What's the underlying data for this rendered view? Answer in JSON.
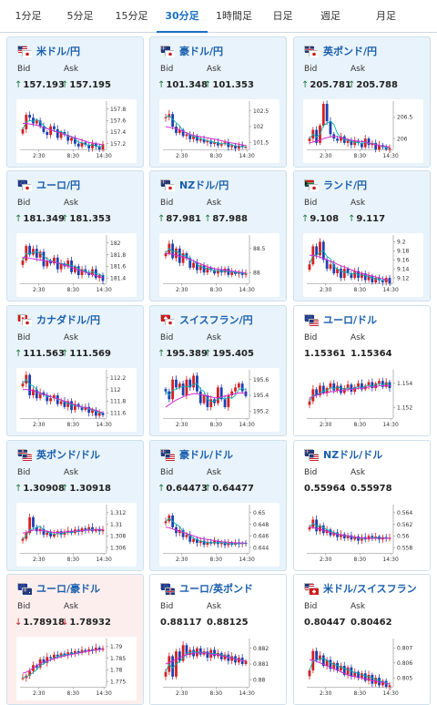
{
  "tabs": [
    {
      "label": "1分足",
      "active": false
    },
    {
      "label": "5分足",
      "active": false
    },
    {
      "label": "15分足",
      "active": false
    },
    {
      "label": "30分足",
      "active": true
    },
    {
      "label": "1時間足",
      "active": false
    },
    {
      "label": "日足",
      "active": false
    },
    {
      "label": "週足",
      "active": false
    },
    {
      "label": "月足",
      "active": false
    }
  ],
  "ui": {
    "bid_label": "Bid",
    "ask_label": "Ask"
  },
  "colors": {
    "card_bg": "#e8f3fb",
    "card_bg_down": "#fdeeee",
    "card_bg_plain": "#ffffff",
    "card_border": "#cfe0ec",
    "up_arrow": "#1a7a3a",
    "down_arrow": "#c21a1a",
    "candle_up": "#d42020",
    "candle_down": "#1c3fb3",
    "ma_short": "#00b5b5",
    "ma_long": "#d22ad2"
  },
  "time_labels": [
    "2:30",
    "8:30",
    "14:30"
  ],
  "pairs": [
    {
      "name": "米ドル/円",
      "flags": [
        "us",
        "jp"
      ],
      "trend": "up",
      "bid": "157.193",
      "ask": "157.195",
      "yticks": [
        "157.8",
        "157.6",
        "157.4",
        "157.2"
      ],
      "series": [
        157.45,
        157.7,
        157.65,
        157.55,
        157.6,
        157.5,
        157.4,
        157.35,
        157.5,
        157.45,
        157.3,
        157.4,
        157.35,
        157.25,
        157.3,
        157.2,
        157.15,
        157.22,
        157.18,
        157.12,
        157.2,
        157.15,
        157.1,
        157.19
      ],
      "ma_long": [
        157.55,
        157.55,
        157.54,
        157.53,
        157.52,
        157.5,
        157.48,
        157.46,
        157.44,
        157.42,
        157.4,
        157.38,
        157.36,
        157.34,
        157.32,
        157.3,
        157.28,
        157.26,
        157.24,
        157.22,
        157.21,
        157.2,
        157.19,
        157.18
      ]
    },
    {
      "name": "豪ドル/円",
      "flags": [
        "au",
        "jp"
      ],
      "trend": "up",
      "bid": "101.348",
      "ask": "101.353",
      "yticks": [
        "102.5",
        "102",
        "101.5"
      ],
      "series": [
        102.3,
        102.4,
        102.0,
        101.8,
        101.9,
        101.7,
        101.75,
        101.6,
        101.7,
        101.55,
        101.6,
        101.5,
        101.55,
        101.45,
        101.5,
        101.4,
        101.45,
        101.5,
        101.35,
        101.4,
        101.3,
        101.4,
        101.35,
        101.35
      ],
      "ma_long": [
        102.0,
        101.98,
        101.96,
        101.94,
        101.9,
        101.85,
        101.8,
        101.75,
        101.72,
        101.7,
        101.68,
        101.66,
        101.64,
        101.62,
        101.6,
        101.58,
        101.55,
        101.52,
        101.5,
        101.48,
        101.46,
        101.44,
        101.42,
        101.4
      ]
    },
    {
      "name": "英ポンド/円",
      "flags": [
        "gb",
        "jp"
      ],
      "trend": "up",
      "bid": "205.781",
      "ask": "205.788",
      "yticks": [
        "206.5",
        "206"
      ],
      "series": [
        206.0,
        206.2,
        205.9,
        206.3,
        206.8,
        206.4,
        206.1,
        206.0,
        205.95,
        206.05,
        205.9,
        205.95,
        205.85,
        205.95,
        205.9,
        205.8,
        206.0,
        205.85,
        205.9,
        205.75,
        205.85,
        205.8,
        205.75,
        205.78
      ],
      "ma_long": [
        205.9,
        205.92,
        205.94,
        205.96,
        206.0,
        206.02,
        206.04,
        206.05,
        206.04,
        206.02,
        206.0,
        205.98,
        205.96,
        205.95,
        205.94,
        205.93,
        205.92,
        205.9,
        205.88,
        205.86,
        205.84,
        205.83,
        205.82,
        205.8
      ]
    },
    {
      "name": "ユーロ/円",
      "flags": [
        "eu",
        "jp"
      ],
      "trend": "up",
      "bid": "181.349",
      "ask": "181.353",
      "yticks": [
        "182",
        "181.8",
        "181.6",
        "181.4"
      ],
      "series": [
        181.7,
        181.95,
        181.8,
        181.9,
        181.75,
        181.85,
        181.6,
        181.7,
        181.65,
        181.75,
        181.55,
        181.65,
        181.6,
        181.7,
        181.5,
        181.6,
        181.45,
        181.55,
        181.5,
        181.45,
        181.55,
        181.4,
        181.45,
        181.35
      ],
      "ma_long": [
        181.75,
        181.75,
        181.74,
        181.73,
        181.72,
        181.71,
        181.7,
        181.69,
        181.68,
        181.67,
        181.66,
        181.64,
        181.62,
        181.6,
        181.58,
        181.56,
        181.54,
        181.52,
        181.5,
        181.48,
        181.46,
        181.44,
        181.42,
        181.4
      ]
    },
    {
      "name": "NZドル/円",
      "flags": [
        "nz",
        "jp"
      ],
      "trend": "up",
      "bid": "87.981",
      "ask": "87.988",
      "yticks": [
        "88.5",
        "88"
      ],
      "series": [
        88.4,
        88.6,
        88.3,
        88.5,
        88.2,
        88.4,
        88.3,
        88.1,
        88.2,
        88.05,
        88.15,
        88.0,
        88.1,
        88.05,
        87.98,
        88.05,
        88.0,
        88.08,
        87.95,
        88.02,
        87.97,
        88.0,
        87.95,
        87.98
      ],
      "ma_long": [
        88.4,
        88.39,
        88.38,
        88.36,
        88.34,
        88.32,
        88.3,
        88.27,
        88.24,
        88.21,
        88.18,
        88.15,
        88.12,
        88.1,
        88.08,
        88.07,
        88.06,
        88.05,
        88.04,
        88.03,
        88.02,
        88.01,
        88.0,
        87.99
      ]
    },
    {
      "name": "ランド/円",
      "flags": [
        "za",
        "jp"
      ],
      "trend": "up",
      "bid": "9.108",
      "ask": "9.117",
      "yticks": [
        "9.2",
        "9.18",
        "9.16",
        "9.14",
        "9.12"
      ],
      "series": [
        9.15,
        9.19,
        9.17,
        9.2,
        9.16,
        9.14,
        9.15,
        9.13,
        9.14,
        9.12,
        9.14,
        9.13,
        9.12,
        9.135,
        9.12,
        9.13,
        9.115,
        9.125,
        9.11,
        9.12,
        9.115,
        9.11,
        9.12,
        9.108
      ],
      "ma_long": [
        9.17,
        9.17,
        9.168,
        9.166,
        9.163,
        9.16,
        9.157,
        9.154,
        9.15,
        9.147,
        9.144,
        9.141,
        9.138,
        9.135,
        9.132,
        9.13,
        9.128,
        9.126,
        9.124,
        9.122,
        9.12,
        9.118,
        9.116,
        9.114
      ]
    },
    {
      "name": "カナダドル/円",
      "flags": [
        "ca",
        "jp"
      ],
      "trend": "up",
      "bid": "111.563",
      "ask": "111.569",
      "yticks": [
        "112.2",
        "112",
        "111.8",
        "111.6"
      ],
      "series": [
        112.1,
        112.25,
        111.9,
        112.0,
        111.85,
        111.95,
        111.9,
        111.8,
        111.85,
        111.9,
        111.75,
        111.8,
        111.7,
        111.8,
        111.65,
        111.75,
        111.7,
        111.65,
        111.7,
        111.6,
        111.65,
        111.55,
        111.6,
        111.56
      ],
      "ma_long": [
        112.0,
        112.0,
        111.99,
        111.98,
        111.96,
        111.94,
        111.92,
        111.9,
        111.88,
        111.86,
        111.84,
        111.82,
        111.8,
        111.78,
        111.76,
        111.74,
        111.72,
        111.7,
        111.69,
        111.68,
        111.66,
        111.64,
        111.62,
        111.6
      ]
    },
    {
      "name": "スイスフラン/円",
      "flags": [
        "ch",
        "jp"
      ],
      "trend": "up",
      "bid": "195.389",
      "ask": "195.405",
      "yticks": [
        "195.6",
        "195.4",
        "195.2"
      ],
      "series": [
        195.45,
        195.35,
        195.6,
        195.5,
        195.55,
        195.4,
        195.6,
        195.5,
        195.65,
        195.45,
        195.3,
        195.4,
        195.25,
        195.35,
        195.3,
        195.5,
        195.35,
        195.25,
        195.4,
        195.45,
        195.5,
        195.55,
        195.45,
        195.39
      ],
      "ma_long": [
        195.25,
        195.28,
        195.31,
        195.34,
        195.36,
        195.38,
        195.4,
        195.41,
        195.42,
        195.42,
        195.41,
        195.4,
        195.39,
        195.38,
        195.37,
        195.37,
        195.38,
        195.39,
        195.4,
        195.41,
        195.42,
        195.43,
        195.43,
        195.42
      ]
    },
    {
      "name": "ユーロ/ドル",
      "flags": [
        "eu",
        "us"
      ],
      "trend": "none",
      "bid": "1.15361",
      "ask": "1.15364",
      "yticks": [
        "1.154",
        "1.152"
      ],
      "series": [
        1.1525,
        1.1535,
        1.153,
        1.1538,
        1.1532,
        1.1536,
        1.154,
        1.1534,
        1.1538,
        1.1532,
        1.1536,
        1.1539,
        1.1533,
        1.1537,
        1.154,
        1.1535,
        1.1538,
        1.1541,
        1.1536,
        1.154,
        1.1542,
        1.1537,
        1.1541,
        1.1536
      ],
      "ma_long": [
        1.1528,
        1.1529,
        1.153,
        1.1531,
        1.1532,
        1.1532,
        1.1533,
        1.1533,
        1.1534,
        1.1534,
        1.1534,
        1.1535,
        1.1535,
        1.1535,
        1.1536,
        1.1536,
        1.1536,
        1.1537,
        1.1537,
        1.1537,
        1.1538,
        1.1538,
        1.1538,
        1.1538
      ]
    },
    {
      "name": "英ポンド/ドル",
      "flags": [
        "gb",
        "us"
      ],
      "trend": "up",
      "bid": "1.30908",
      "ask": "1.30918",
      "yticks": [
        "1.312",
        "1.31",
        "1.308",
        "1.306"
      ],
      "series": [
        1.3075,
        1.3085,
        1.3112,
        1.3095,
        1.3088,
        1.3092,
        1.3082,
        1.3086,
        1.3079,
        1.3084,
        1.3088,
        1.3082,
        1.3086,
        1.3089,
        1.3085,
        1.3091,
        1.3087,
        1.3093,
        1.3089,
        1.3095,
        1.3088,
        1.3092,
        1.3088,
        1.3091
      ],
      "ma_long": [
        1.3085,
        1.3086,
        1.3088,
        1.309,
        1.309,
        1.309,
        1.3089,
        1.3088,
        1.3087,
        1.3086,
        1.3086,
        1.3086,
        1.3087,
        1.3087,
        1.3088,
        1.3088,
        1.3089,
        1.3089,
        1.309,
        1.309,
        1.309,
        1.3091,
        1.3091,
        1.3091
      ]
    },
    {
      "name": "豪ドル/ドル",
      "flags": [
        "au",
        "us"
      ],
      "trend": "up",
      "bid": "0.64473",
      "ask": "0.64477",
      "yticks": [
        "0.65",
        "0.648",
        "0.646",
        "0.644"
      ],
      "series": [
        0.6485,
        0.6495,
        0.6475,
        0.6465,
        0.647,
        0.6458,
        0.6462,
        0.645,
        0.6455,
        0.6448,
        0.6452,
        0.6445,
        0.645,
        0.6447,
        0.6452,
        0.6446,
        0.6449,
        0.6444,
        0.6448,
        0.6445,
        0.6449,
        0.6446,
        0.6448,
        0.6447
      ],
      "ma_long": [
        0.6475,
        0.6474,
        0.6472,
        0.647,
        0.6468,
        0.6466,
        0.6464,
        0.6462,
        0.646,
        0.6458,
        0.6456,
        0.6455,
        0.6454,
        0.6453,
        0.6452,
        0.6451,
        0.645,
        0.645,
        0.6449,
        0.6449,
        0.6448,
        0.6448,
        0.6448,
        0.6448
      ]
    },
    {
      "name": "NZドル/ドル",
      "flags": [
        "nz",
        "us"
      ],
      "trend": "none",
      "bid": "0.55964",
      "ask": "0.55978",
      "yticks": [
        "0.564",
        "0.562",
        "0.56",
        "0.558"
      ],
      "series": [
        0.5615,
        0.5628,
        0.5608,
        0.5618,
        0.5605,
        0.5611,
        0.5601,
        0.5606,
        0.5598,
        0.5603,
        0.5596,
        0.5601,
        0.5594,
        0.5599,
        0.5592,
        0.5598,
        0.5594,
        0.56,
        0.5595,
        0.5599,
        0.5594,
        0.5598,
        0.5595,
        0.5597
      ],
      "ma_long": [
        0.5615,
        0.5614,
        0.5613,
        0.5612,
        0.561,
        0.5608,
        0.5606,
        0.5604,
        0.5603,
        0.5602,
        0.5601,
        0.56,
        0.5599,
        0.5598,
        0.5597,
        0.5597,
        0.5596,
        0.5596,
        0.5596,
        0.5596,
        0.5596,
        0.5596,
        0.5596,
        0.5596
      ]
    },
    {
      "name": "ユーロ/豪ドル",
      "flags": [
        "eu",
        "au"
      ],
      "trend": "down",
      "bid": "1.78918",
      "ask": "1.78932",
      "yticks": [
        "1.79",
        "1.785",
        "1.78",
        "1.775"
      ],
      "series": [
        1.7765,
        1.7775,
        1.7795,
        1.782,
        1.781,
        1.7845,
        1.783,
        1.7855,
        1.785,
        1.7865,
        1.7858,
        1.787,
        1.7862,
        1.7875,
        1.7868,
        1.788,
        1.7872,
        1.7885,
        1.7878,
        1.7888,
        1.7882,
        1.7895,
        1.7886,
        1.7892
      ],
      "ma_long": [
        1.7785,
        1.779,
        1.7798,
        1.7808,
        1.7818,
        1.7826,
        1.7833,
        1.7838,
        1.7843,
        1.7848,
        1.7852,
        1.7856,
        1.786,
        1.7863,
        1.7866,
        1.7869,
        1.7872,
        1.7875,
        1.7878,
        1.788,
        1.7883,
        1.7885,
        1.7887,
        1.7889
      ]
    },
    {
      "name": "ユーロ/英ポンド",
      "flags": [
        "eu",
        "gb"
      ],
      "trend": "none",
      "bid": "0.88117",
      "ask": "0.88125",
      "yticks": [
        "0.882",
        "0.881",
        "0.88"
      ],
      "series": [
        0.8805,
        0.8815,
        0.8802,
        0.8818,
        0.8812,
        0.8822,
        0.8816,
        0.8819,
        0.8815,
        0.882,
        0.8816,
        0.8818,
        0.8814,
        0.8819,
        0.8815,
        0.8817,
        0.8813,
        0.8816,
        0.8812,
        0.8815,
        0.8811,
        0.8814,
        0.881,
        0.8812
      ],
      "ma_long": [
        0.881,
        0.8811,
        0.8812,
        0.8813,
        0.8814,
        0.8815,
        0.8816,
        0.8816,
        0.8817,
        0.8817,
        0.8817,
        0.8817,
        0.8817,
        0.8816,
        0.8816,
        0.8816,
        0.8815,
        0.8815,
        0.8814,
        0.8814,
        0.8813,
        0.8813,
        0.8812,
        0.8812
      ]
    },
    {
      "name": "米ドル/スイスフラン",
      "flags": [
        "us",
        "ch"
      ],
      "trend": "none",
      "bid": "0.80447",
      "ask": "0.80462",
      "yticks": [
        "0.807",
        "0.806",
        "0.805"
      ],
      "series": [
        0.8055,
        0.8068,
        0.8062,
        0.8065,
        0.8058,
        0.8062,
        0.8056,
        0.806,
        0.8055,
        0.8058,
        0.8052,
        0.8057,
        0.8051,
        0.8054,
        0.805,
        0.8053,
        0.8048,
        0.8052,
        0.8046,
        0.805,
        0.8045,
        0.8048,
        0.8044,
        0.8045
      ],
      "ma_long": [
        0.8062,
        0.8062,
        0.8061,
        0.806,
        0.8059,
        0.8058,
        0.8057,
        0.8056,
        0.8055,
        0.8054,
        0.8053,
        0.8052,
        0.8051,
        0.8051,
        0.805,
        0.805,
        0.8049,
        0.8049,
        0.8048,
        0.8048,
        0.8047,
        0.8047,
        0.8046,
        0.8046
      ]
    }
  ]
}
